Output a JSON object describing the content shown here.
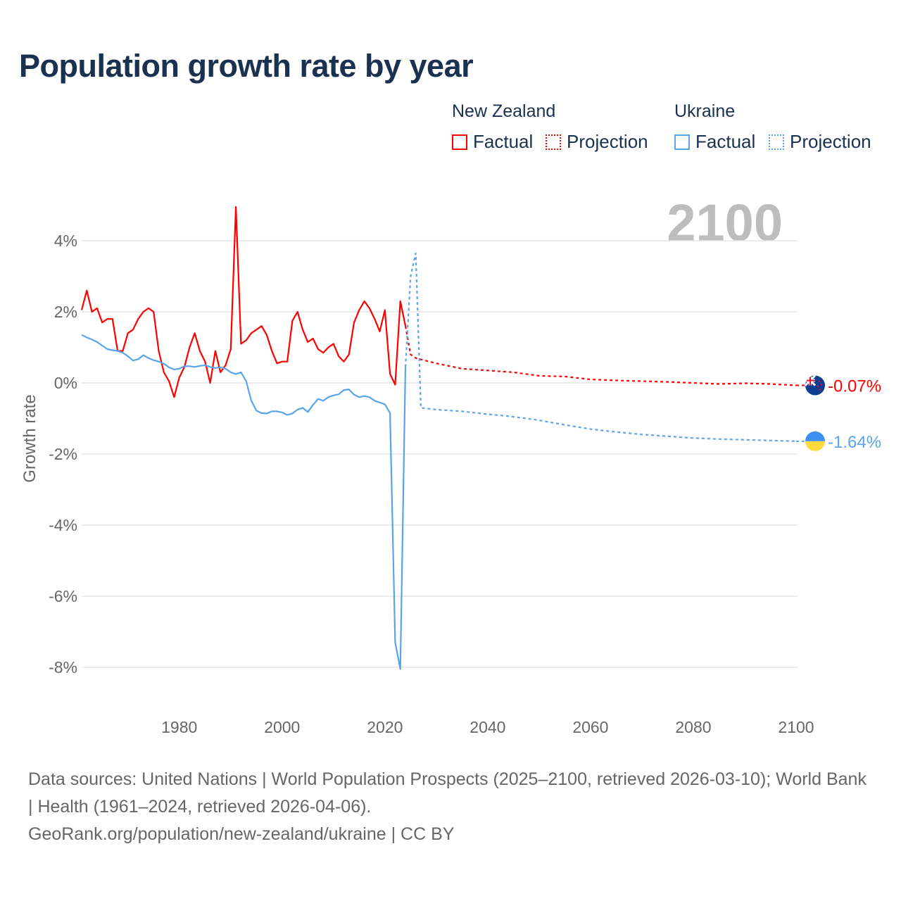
{
  "title": "Population growth rate by year",
  "legend": {
    "groups": [
      {
        "name": "New Zealand",
        "factual": "Factual",
        "projection": "Projection",
        "color": "#ff0000"
      },
      {
        "name": "Ukraine",
        "factual": "Factual",
        "projection": "Projection",
        "color": "#5aa5ea"
      }
    ]
  },
  "year_label": "2100",
  "sources": {
    "line1": "Data sources: United Nations | World Population Prospects (2025–2100, retrieved 2026-03-10); World Bank | Health (1961–2024, retrieved 2026-04-06).",
    "line2": "GeoRank.org/population/new-zealand/ukraine | CC BY"
  },
  "chart_data": {
    "type": "line",
    "title": "Population growth rate by year",
    "xlabel": "",
    "ylabel": "Growth rate",
    "xlim": [
      1961,
      2100
    ],
    "ylim": [
      -9,
      5
    ],
    "xticks": [
      1980,
      2000,
      2020,
      2040,
      2060,
      2080,
      2100
    ],
    "xtick_labels": [
      "1980",
      "2000",
      "2020",
      "2040",
      "2060",
      "2080",
      "2100"
    ],
    "yticks": [
      4,
      2,
      0,
      -2,
      -4,
      -6,
      -8
    ],
    "ytick_labels": [
      "4%",
      "2%",
      "0%",
      "-2%",
      "-4%",
      "-6%",
      "-8%"
    ],
    "grid": true,
    "series": [
      {
        "name": "New Zealand Factual",
        "color": "#ff0000",
        "dash": false,
        "x": [
          1961,
          1962,
          1963,
          1964,
          1965,
          1966,
          1967,
          1968,
          1969,
          1970,
          1971,
          1972,
          1973,
          1974,
          1975,
          1976,
          1977,
          1978,
          1979,
          1980,
          1981,
          1982,
          1983,
          1984,
          1985,
          1986,
          1987,
          1988,
          1989,
          1990,
          1991,
          1992,
          1993,
          1994,
          1995,
          1996,
          1997,
          1998,
          1999,
          2000,
          2001,
          2002,
          2003,
          2004,
          2005,
          2006,
          2007,
          2008,
          2009,
          2010,
          2011,
          2012,
          2013,
          2014,
          2015,
          2016,
          2017,
          2018,
          2019,
          2020,
          2021,
          2022,
          2023,
          2024
        ],
        "y": [
          2.05,
          2.6,
          2.0,
          2.1,
          1.7,
          1.8,
          1.8,
          0.9,
          0.9,
          1.4,
          1.5,
          1.8,
          2.0,
          2.1,
          2.0,
          0.9,
          0.3,
          0.05,
          -0.4,
          0.15,
          0.45,
          1.0,
          1.4,
          0.9,
          0.6,
          0.0,
          0.9,
          0.3,
          0.5,
          0.95,
          4.95,
          1.1,
          1.2,
          1.4,
          1.5,
          1.6,
          1.35,
          0.9,
          0.55,
          0.6,
          0.6,
          1.75,
          2.0,
          1.5,
          1.15,
          1.25,
          0.95,
          0.85,
          1.0,
          1.1,
          0.75,
          0.6,
          0.8,
          1.7,
          2.05,
          2.3,
          2.1,
          1.8,
          1.45,
          2.05,
          0.25,
          -0.05,
          2.3,
          1.6
        ]
      },
      {
        "name": "New Zealand Projection",
        "color": "#ff0000",
        "dash": true,
        "x": [
          2024,
          2025,
          2026,
          2030,
          2035,
          2040,
          2045,
          2050,
          2055,
          2060,
          2065,
          2070,
          2075,
          2080,
          2085,
          2090,
          2095,
          2100
        ],
        "y": [
          1.6,
          0.8,
          0.7,
          0.55,
          0.4,
          0.35,
          0.3,
          0.2,
          0.18,
          0.1,
          0.07,
          0.05,
          0.03,
          0.0,
          -0.03,
          -0.01,
          -0.03,
          -0.07
        ]
      },
      {
        "name": "Ukraine Factual",
        "color": "#5aa5ea",
        "dash": false,
        "x": [
          1961,
          1962,
          1963,
          1964,
          1965,
          1966,
          1967,
          1968,
          1969,
          1970,
          1971,
          1972,
          1973,
          1974,
          1975,
          1976,
          1977,
          1978,
          1979,
          1980,
          1981,
          1982,
          1983,
          1984,
          1985,
          1986,
          1987,
          1988,
          1989,
          1990,
          1991,
          1992,
          1993,
          1994,
          1995,
          1996,
          1997,
          1998,
          1999,
          2000,
          2001,
          2002,
          2003,
          2004,
          2005,
          2006,
          2007,
          2008,
          2009,
          2010,
          2011,
          2012,
          2013,
          2014,
          2015,
          2016,
          2017,
          2018,
          2019,
          2020,
          2021,
          2022,
          2023,
          2024
        ],
        "y": [
          1.35,
          1.28,
          1.22,
          1.15,
          1.05,
          0.95,
          0.92,
          0.9,
          0.85,
          0.75,
          0.63,
          0.67,
          0.78,
          0.7,
          0.64,
          0.6,
          0.54,
          0.44,
          0.38,
          0.4,
          0.47,
          0.47,
          0.45,
          0.48,
          0.5,
          0.45,
          0.42,
          0.44,
          0.4,
          0.3,
          0.25,
          0.3,
          0.05,
          -0.5,
          -0.78,
          -0.85,
          -0.86,
          -0.8,
          -0.8,
          -0.83,
          -0.9,
          -0.86,
          -0.75,
          -0.7,
          -0.82,
          -0.62,
          -0.45,
          -0.5,
          -0.4,
          -0.35,
          -0.32,
          -0.2,
          -0.18,
          -0.33,
          -0.4,
          -0.37,
          -0.4,
          -0.5,
          -0.55,
          -0.6,
          -0.85,
          -7.3,
          -8.05,
          0.45
        ]
      },
      {
        "name": "Ukraine Projection",
        "color": "#5aa5ea",
        "dash": true,
        "x": [
          2024,
          2025,
          2026,
          2027,
          2030,
          2035,
          2040,
          2045,
          2050,
          2055,
          2060,
          2065,
          2070,
          2075,
          2080,
          2085,
          2090,
          2095,
          2100
        ],
        "y": [
          0.45,
          3.0,
          3.65,
          -0.7,
          -0.75,
          -0.8,
          -0.88,
          -0.95,
          -1.05,
          -1.18,
          -1.3,
          -1.38,
          -1.45,
          -1.5,
          -1.55,
          -1.58,
          -1.6,
          -1.62,
          -1.64
        ]
      }
    ],
    "end_labels": [
      {
        "series": "New Zealand",
        "value": -0.07,
        "text": "-0.07%",
        "color": "#ff0000",
        "flag": "new-zealand-flag"
      },
      {
        "series": "Ukraine",
        "value": -1.64,
        "text": "-1.64%",
        "color": "#5aa5ea",
        "flag": "ukraine-flag"
      }
    ]
  }
}
